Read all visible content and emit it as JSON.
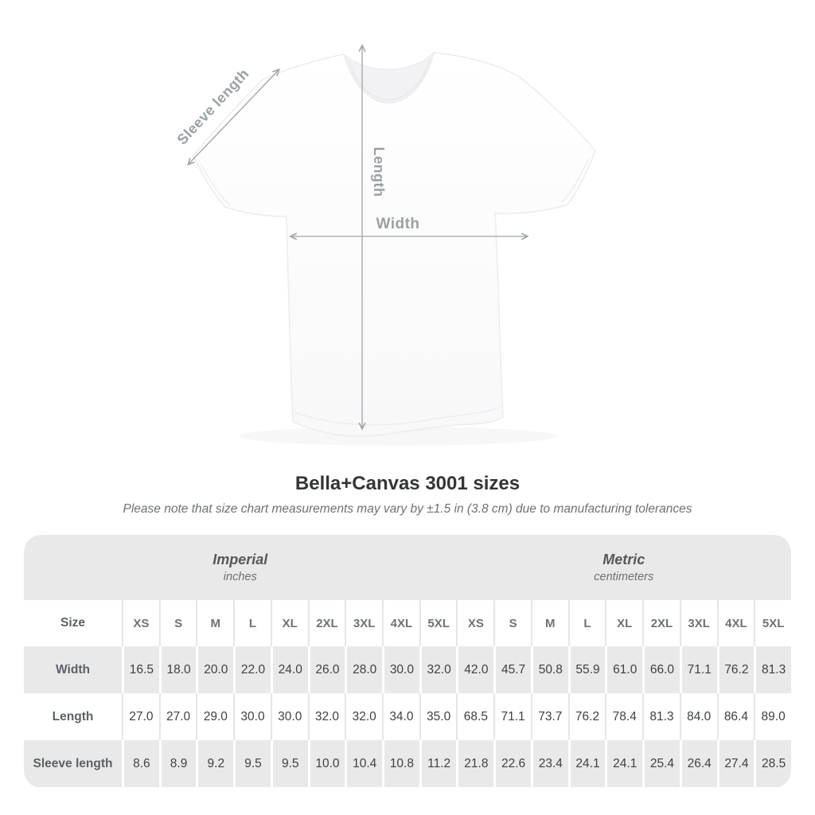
{
  "diagram": {
    "labels": {
      "sleeve": "Sleeve length",
      "length": "Length",
      "width": "Width"
    },
    "line_color": "#9fa3a6",
    "label_color": "#9aa0a4"
  },
  "title": "Bella+Canvas 3001 sizes",
  "subtitle": "Please note that size chart measurements may vary by ±1.5 in (3.8 cm) due to manufacturing tolerances",
  "table": {
    "groups": [
      {
        "label": "Imperial",
        "sublabel": "inches"
      },
      {
        "label": "Metric",
        "sublabel": "centimeters"
      }
    ],
    "size_header": "Size",
    "sizes": [
      "XS",
      "S",
      "M",
      "L",
      "XL",
      "2XL",
      "3XL",
      "4XL",
      "5XL"
    ],
    "rows": [
      {
        "label": "Width",
        "imperial": [
          "16.5",
          "18.0",
          "20.0",
          "22.0",
          "24.0",
          "26.0",
          "28.0",
          "30.0",
          "32.0"
        ],
        "metric": [
          "42.0",
          "45.7",
          "50.8",
          "55.9",
          "61.0",
          "66.0",
          "71.1",
          "76.2",
          "81.3"
        ]
      },
      {
        "label": "Length",
        "imperial": [
          "27.0",
          "27.0",
          "29.0",
          "30.0",
          "30.0",
          "32.0",
          "32.0",
          "34.0",
          "35.0"
        ],
        "metric": [
          "68.5",
          "71.1",
          "73.7",
          "76.2",
          "78.4",
          "81.3",
          "84.0",
          "86.4",
          "89.0"
        ]
      },
      {
        "label": "Sleeve length",
        "imperial": [
          "8.6",
          "8.9",
          "9.2",
          "9.5",
          "9.5",
          "10.0",
          "10.4",
          "10.8",
          "11.2"
        ],
        "metric": [
          "21.8",
          "22.6",
          "23.4",
          "24.1",
          "24.1",
          "25.4",
          "26.4",
          "27.4",
          "28.5"
        ]
      }
    ],
    "colors": {
      "band_bg": "#e9e9e9",
      "header_text": "#6d7276",
      "value_text": "#3e4143"
    }
  },
  "chart_data": {
    "type": "table",
    "title": "Bella+Canvas 3001 sizes",
    "note": "Please note that size chart measurements may vary by ±1.5 in (3.8 cm) due to manufacturing tolerances",
    "units": {
      "imperial": "inches",
      "metric": "centimeters"
    },
    "sizes": [
      "XS",
      "S",
      "M",
      "L",
      "XL",
      "2XL",
      "3XL",
      "4XL",
      "5XL"
    ],
    "measurements": {
      "width_in": [
        16.5,
        18.0,
        20.0,
        22.0,
        24.0,
        26.0,
        28.0,
        30.0,
        32.0
      ],
      "width_cm": [
        42.0,
        45.7,
        50.8,
        55.9,
        61.0,
        66.0,
        71.1,
        76.2,
        81.3
      ],
      "length_in": [
        27.0,
        27.0,
        29.0,
        30.0,
        30.0,
        32.0,
        32.0,
        34.0,
        35.0
      ],
      "length_cm": [
        68.5,
        71.1,
        73.7,
        76.2,
        78.4,
        81.3,
        84.0,
        86.4,
        89.0
      ],
      "sleeve_in": [
        8.6,
        8.9,
        9.2,
        9.5,
        9.5,
        10.0,
        10.4,
        10.8,
        11.2
      ],
      "sleeve_cm": [
        21.8,
        22.6,
        23.4,
        24.1,
        24.1,
        25.4,
        26.4,
        27.4,
        28.5
      ]
    }
  }
}
